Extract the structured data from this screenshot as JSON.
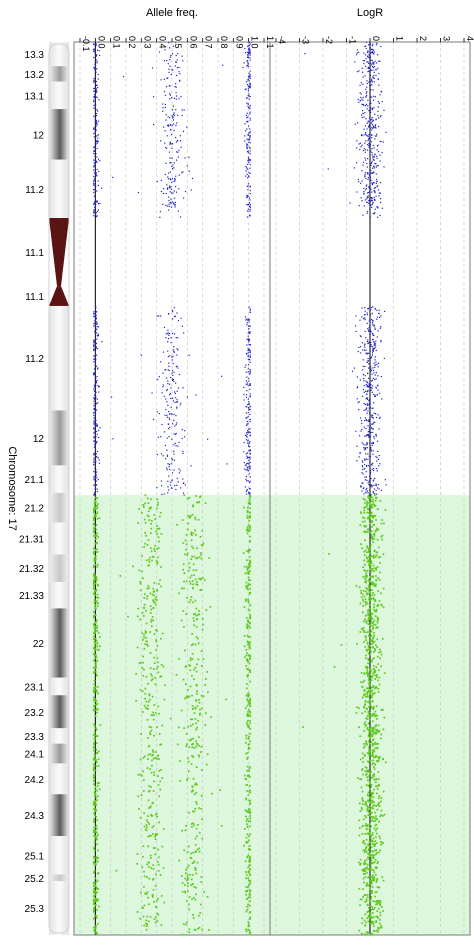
{
  "chart_data": {
    "type": "scatter",
    "chromosome_label": "Chromosome: 17",
    "bands": [
      {
        "name": "13.3",
        "start": 0,
        "end": 2.2,
        "shade": "white"
      },
      {
        "name": "13.2",
        "start": 2.2,
        "end": 3.6,
        "shade": "gpos50"
      },
      {
        "name": "13.1",
        "start": 3.6,
        "end": 6.1,
        "shade": "white"
      },
      {
        "name": "12",
        "start": 6.1,
        "end": 10.7,
        "shade": "gpos75"
      },
      {
        "name": "11.2",
        "start": 10.7,
        "end": 16.0,
        "shade": "white"
      },
      {
        "name": "11.1",
        "start": 16.0,
        "end": 22.2,
        "shade": "acen"
      },
      {
        "name": "11.1",
        "start": 22.2,
        "end": 24.0,
        "shade": "acen"
      },
      {
        "name": "11.2",
        "start": 24.0,
        "end": 33.5,
        "shade": "white"
      },
      {
        "name": "12",
        "start": 33.5,
        "end": 38.5,
        "shade": "gpos50"
      },
      {
        "name": "21.1",
        "start": 38.5,
        "end": 41.0,
        "shade": "white"
      },
      {
        "name": "21.2",
        "start": 41.0,
        "end": 43.7,
        "shade": "gpos25"
      },
      {
        "name": "21.31",
        "start": 43.7,
        "end": 46.6,
        "shade": "white"
      },
      {
        "name": "21.32",
        "start": 46.6,
        "end": 49.1,
        "shade": "gpos25"
      },
      {
        "name": "21.33",
        "start": 49.1,
        "end": 51.5,
        "shade": "white"
      },
      {
        "name": "22",
        "start": 51.5,
        "end": 57.8,
        "shade": "gpos75"
      },
      {
        "name": "23.1",
        "start": 57.8,
        "end": 59.4,
        "shade": "white"
      },
      {
        "name": "23.2",
        "start": 59.4,
        "end": 62.4,
        "shade": "gpos75"
      },
      {
        "name": "23.3",
        "start": 62.4,
        "end": 63.8,
        "shade": "white"
      },
      {
        "name": "24.1",
        "start": 63.8,
        "end": 65.6,
        "shade": "gpos50"
      },
      {
        "name": "24.2",
        "start": 65.6,
        "end": 68.4,
        "shade": "white"
      },
      {
        "name": "24.3",
        "start": 68.4,
        "end": 72.2,
        "shade": "gpos75"
      },
      {
        "name": "25.1",
        "start": 72.2,
        "end": 75.7,
        "shade": "white"
      },
      {
        "name": "25.2",
        "start": 75.7,
        "end": 76.3,
        "shade": "gpos25"
      },
      {
        "name": "25.3",
        "start": 76.3,
        "end": 81.2,
        "shade": "white"
      }
    ],
    "y_range_mb": [
      0,
      81.2
    ],
    "highlight_region_mb": [
      41.2,
      81.2
    ],
    "panels": [
      {
        "title": "Allele freq.",
        "xlim": [
          -0.1,
          1.1
        ],
        "ticks": [
          "-0.1",
          "0.0",
          "0.1",
          "0.2",
          "0.3",
          "0.4",
          "0.5",
          "0.6",
          "0.7",
          "0.8",
          "0.9",
          "1.0",
          "1.1"
        ],
        "reference_line": 0.0,
        "grid": true
      },
      {
        "title": "LogR",
        "xlim": [
          -4,
          4
        ],
        "ticks": [
          "-4",
          "-3",
          "-2",
          "-1",
          "0",
          "1",
          "2",
          "3",
          "4"
        ],
        "reference_line": 0,
        "grid": true
      }
    ],
    "series": [
      {
        "color": "#2020c8",
        "segment_mb": [
          0,
          41.2
        ],
        "baf_clusters": [
          {
            "center": 0.0,
            "spread": 0.012
          },
          {
            "center": 0.5,
            "spread": 0.04
          },
          {
            "center": 1.0,
            "spread": 0.012
          }
        ],
        "logr_center": 0.0,
        "logr_spread": 0.25
      },
      {
        "color": "#5ec81e",
        "segment_mb": [
          41.2,
          81.2
        ],
        "baf_clusters": [
          {
            "center": 0.0,
            "spread": 0.012
          },
          {
            "center": 0.36,
            "spread": 0.04
          },
          {
            "center": 0.64,
            "spread": 0.04
          },
          {
            "center": 1.0,
            "spread": 0.012
          }
        ],
        "logr_center": 0.05,
        "logr_spread": 0.22
      }
    ],
    "gaps_mb": [
      [
        16.0,
        24.0
      ]
    ]
  },
  "colors": {
    "highlight": "#dcf7dc",
    "grid": "#c8c8c8",
    "acen": "#5a1414",
    "frame": "#7a7a7a"
  }
}
